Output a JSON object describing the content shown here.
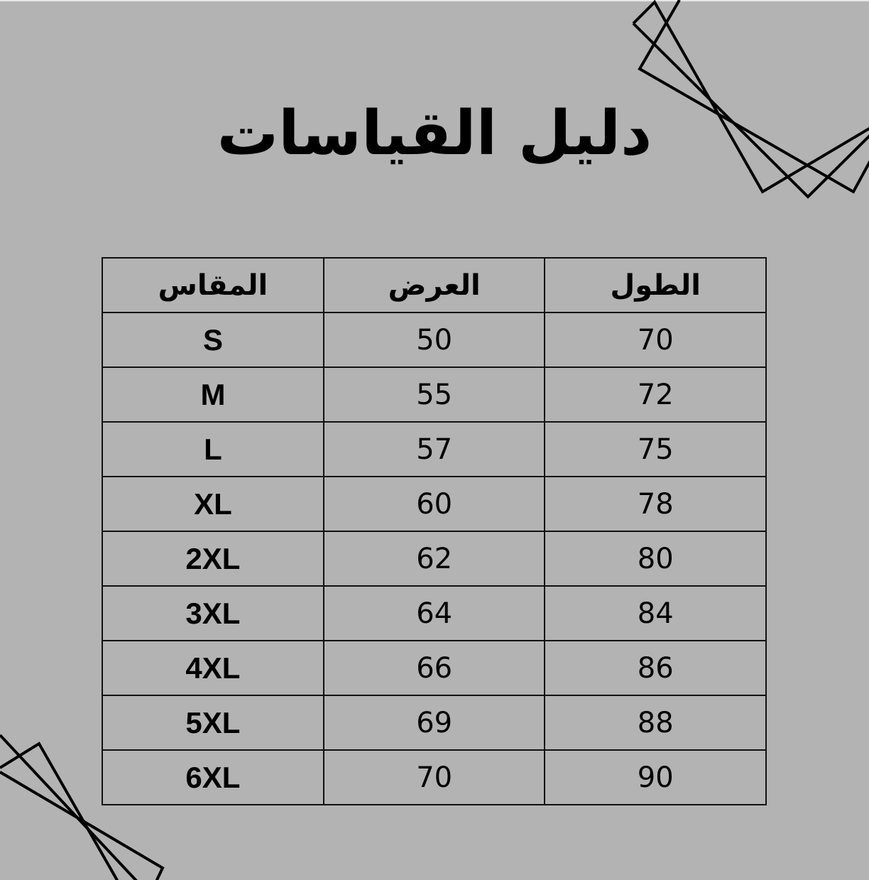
{
  "title": "دليل القياسات",
  "table": {
    "headers": {
      "size": "المقاس",
      "width": "العرض",
      "length": "الطول"
    },
    "rows": [
      {
        "size": "S",
        "width": "50",
        "length": "70"
      },
      {
        "size": "M",
        "width": "55",
        "length": "72"
      },
      {
        "size": "L",
        "width": "57",
        "length": "75"
      },
      {
        "size": "XL",
        "width": "60",
        "length": "78"
      },
      {
        "size": "2XL",
        "width": "62",
        "length": "80"
      },
      {
        "size": "3XL",
        "width": "64",
        "length": "84"
      },
      {
        "size": "4XL",
        "width": "66",
        "length": "86"
      },
      {
        "size": "5XL",
        "width": "69",
        "length": "88"
      },
      {
        "size": "6XL",
        "width": "70",
        "length": "90"
      }
    ]
  },
  "colors": {
    "background": "#b3b3b3",
    "ink": "#000000"
  }
}
